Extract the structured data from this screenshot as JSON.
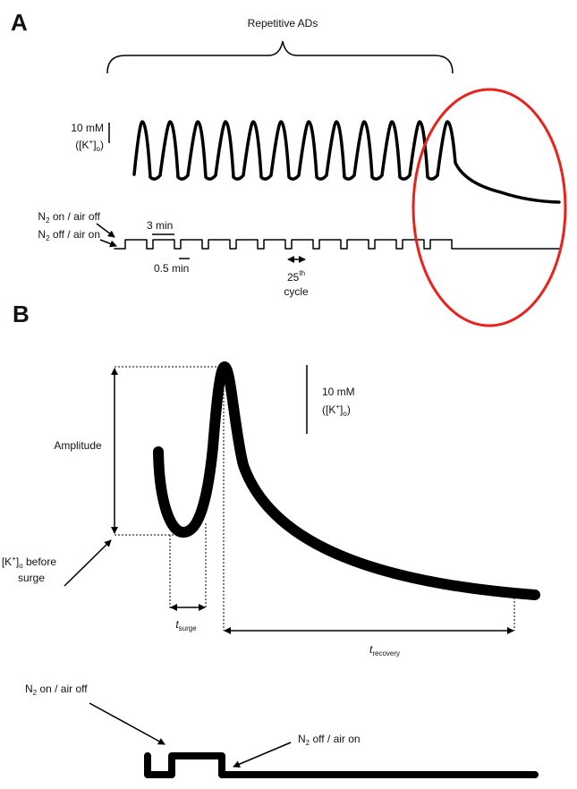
{
  "panel_a": {
    "label": "A",
    "bracket_label": "Repetitive ADs",
    "scale": {
      "value": "10 mM",
      "unit": [
        "([K",
        "+",
        "]",
        "o",
        ")"
      ]
    },
    "n2_on": [
      "N",
      "2",
      " on / air off"
    ],
    "n2_off": [
      "N",
      "2",
      " off / air on"
    ],
    "duration_on": "3 min",
    "duration_off": "0.5 min",
    "cycle": [
      "25",
      "th"
    ],
    "cycle_word": "cycle"
  },
  "panel_b": {
    "label": "B",
    "scale": {
      "value": "10 mM",
      "unit": [
        "([K",
        "+",
        "]",
        "o",
        ")"
      ]
    },
    "amplitude": "Amplitude",
    "baseline": [
      "[K",
      "+",
      "]",
      "o",
      " before"
    ],
    "baseline_word": "surge",
    "t_surge": [
      "t",
      "surge"
    ],
    "t_recovery": [
      "t",
      "recovery"
    ],
    "n2_on": [
      "N",
      "2",
      " on / air off"
    ],
    "n2_off": [
      "N",
      "2",
      " off / air on"
    ]
  }
}
